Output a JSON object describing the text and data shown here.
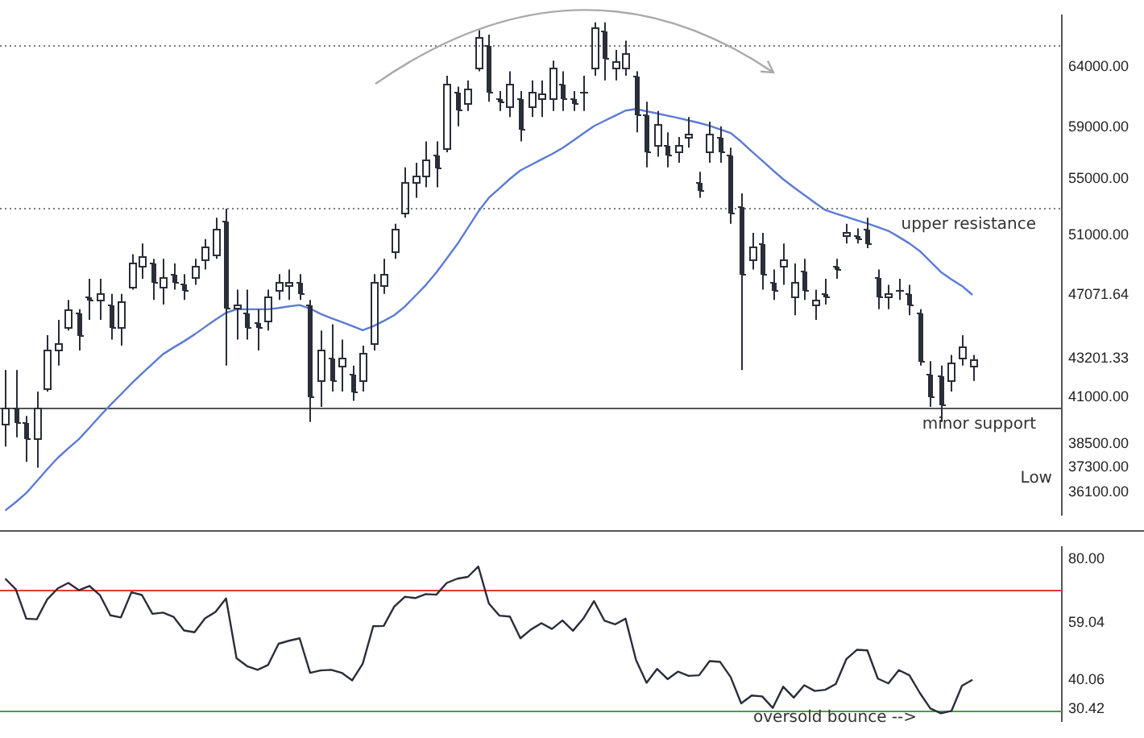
{
  "chart_data": [
    {
      "type": "candlestick",
      "log": true,
      "color": "#2a2e39",
      "categories": [
        null,
        null,
        null,
        null,
        null,
        null,
        null,
        null,
        null,
        null,
        null,
        null,
        null,
        null,
        null,
        null,
        null,
        null,
        null,
        null,
        null,
        null,
        null,
        null,
        null,
        null,
        null,
        null,
        null,
        null,
        null,
        null,
        null,
        null,
        null,
        null,
        null,
        null,
        null,
        null,
        null,
        null,
        null,
        null,
        null,
        null,
        null,
        null,
        null,
        null,
        null,
        null,
        null,
        null,
        null,
        null,
        null,
        null,
        null,
        null,
        null,
        null,
        null,
        null,
        null,
        null,
        null,
        null,
        null,
        null,
        null,
        null,
        null,
        null,
        null,
        null,
        null,
        null,
        null,
        null,
        null,
        null,
        null,
        null,
        null,
        null,
        null,
        null,
        null,
        null,
        null,
        null,
        null,
        null,
        null,
        null,
        null,
        null,
        null,
        null,
        null
      ],
      "ohlc": [
        [
          39580,
          42540,
          38380,
          40400
        ],
        [
          40400,
          42540,
          38860,
          39670
        ],
        [
          39670,
          39990,
          37600,
          38780
        ],
        [
          38780,
          41330,
          37300,
          40480
        ],
        [
          41500,
          44590,
          41330,
          43680
        ],
        [
          43680,
          45510,
          42800,
          44130
        ],
        [
          45050,
          46750,
          44870,
          46170
        ],
        [
          45980,
          46170,
          43680,
          44590
        ],
        [
          46940,
          48110,
          45510,
          46750
        ],
        [
          46750,
          48110,
          45510,
          47130
        ],
        [
          46460,
          47130,
          44320,
          45050
        ],
        [
          45050,
          47130,
          43960,
          46650
        ],
        [
          47610,
          49720,
          47410,
          49110
        ],
        [
          48910,
          50440,
          48110,
          49620
        ],
        [
          49110,
          49410,
          46750,
          47910
        ],
        [
          47610,
          49410,
          46460,
          48210
        ],
        [
          48410,
          49110,
          47410,
          47910
        ],
        [
          47810,
          48410,
          46750,
          47410
        ],
        [
          48210,
          49410,
          47710,
          48910
        ],
        [
          49410,
          50750,
          48710,
          50230
        ],
        [
          49720,
          52230,
          49410,
          51480
        ],
        [
          52010,
          52870,
          42800,
          46270
        ],
        [
          46270,
          47410,
          44320,
          46460
        ],
        [
          45980,
          47410,
          44320,
          45050
        ],
        [
          45330,
          46170,
          43680,
          45050
        ],
        [
          45510,
          47410,
          44870,
          46940
        ],
        [
          47410,
          48410,
          46750,
          47910
        ],
        [
          47710,
          48710,
          46750,
          47910
        ],
        [
          47910,
          48410,
          46750,
          47130
        ],
        [
          46460,
          46750,
          39670,
          41070
        ],
        [
          41930,
          44870,
          40480,
          43680
        ],
        [
          43240,
          45240,
          41330,
          41930
        ],
        [
          42800,
          44320,
          41330,
          43240
        ],
        [
          42360,
          42800,
          40820,
          41330
        ],
        [
          41930,
          43960,
          41330,
          43500
        ],
        [
          44130,
          48410,
          43680,
          47910
        ],
        [
          47710,
          49410,
          47130,
          48410
        ],
        [
          49920,
          51800,
          49410,
          51480
        ],
        [
          52550,
          55890,
          52230,
          54750
        ],
        [
          54750,
          56240,
          53640,
          55320
        ],
        [
          55320,
          57880,
          54410,
          56470
        ],
        [
          56810,
          57880,
          54410,
          55890
        ],
        [
          57400,
          63220,
          57040,
          62570
        ],
        [
          61930,
          62310,
          59070,
          60420
        ],
        [
          60920,
          62830,
          60300,
          62180
        ],
        [
          63870,
          67230,
          63610,
          66550
        ],
        [
          65870,
          66820,
          61050,
          61930
        ],
        [
          61300,
          61930,
          60300,
          61050
        ],
        [
          60670,
          63610,
          59810,
          62570
        ],
        [
          61300,
          61930,
          57880,
          58830
        ],
        [
          60670,
          62830,
          59810,
          61930
        ],
        [
          61300,
          62830,
          59810,
          61680
        ],
        [
          61300,
          64530,
          60300,
          63870
        ],
        [
          62570,
          63610,
          60300,
          61300
        ],
        [
          61300,
          61930,
          60300,
          60920
        ],
        [
          61930,
          63220,
          60300,
          61930
        ],
        [
          63870,
          67930,
          63220,
          67510
        ],
        [
          67230,
          67930,
          62830,
          64790
        ],
        [
          63870,
          65460,
          62830,
          64530
        ],
        [
          63870,
          66290,
          63220,
          65190
        ],
        [
          63220,
          63610,
          58590,
          60050
        ],
        [
          60050,
          61050,
          55890,
          57040
        ],
        [
          57640,
          60300,
          56700,
          59190
        ],
        [
          57640,
          58590,
          55890,
          56810
        ],
        [
          57040,
          58230,
          56240,
          57640
        ],
        [
          58230,
          59810,
          57400,
          58470
        ],
        [
          54750,
          55550,
          53640,
          54190
        ],
        [
          57040,
          59440,
          56240,
          58470
        ],
        [
          58230,
          59070,
          56240,
          57040
        ],
        [
          56810,
          57400,
          51800,
          52550
        ],
        [
          53090,
          53970,
          42540,
          48410
        ],
        [
          49410,
          51170,
          48710,
          50230
        ],
        [
          50440,
          51170,
          47410,
          48410
        ],
        [
          47910,
          48710,
          46750,
          47410
        ],
        [
          48910,
          50440,
          47710,
          49410
        ],
        [
          46940,
          49110,
          45800,
          47910
        ],
        [
          48610,
          49410,
          46750,
          47410
        ],
        [
          46460,
          47410,
          45510,
          46750
        ],
        [
          47220,
          48110,
          46460,
          46940
        ],
        [
          48910,
          49410,
          48110,
          48710
        ],
        [
          50960,
          51800,
          50440,
          51270
        ],
        [
          50960,
          51480,
          50440,
          50750
        ],
        [
          51480,
          52230,
          50130,
          50440
        ],
        [
          48210,
          48710,
          46170,
          46940
        ],
        [
          46940,
          47710,
          46170,
          47220
        ],
        [
          47410,
          48110,
          46750,
          47410
        ],
        [
          47220,
          47710,
          45800,
          46460
        ],
        [
          45980,
          46170,
          42800,
          43060
        ],
        [
          42360,
          43060,
          40480,
          41070
        ],
        [
          42190,
          42800,
          39670,
          40650
        ],
        [
          41930,
          43420,
          41330,
          42980
        ],
        [
          43240,
          44590,
          42800,
          43870
        ],
        [
          42800,
          43420,
          41930,
          43201.33
        ],
        null,
        null,
        null,
        null,
        null,
        null,
        null,
        null
      ],
      "series": [
        {
          "type": "line",
          "color": "#5b7bd5",
          "values": [
            35210,
            35610,
            36050,
            36630,
            37230,
            37800,
            38290,
            38760,
            39360,
            39980,
            40590,
            41170,
            41770,
            42340,
            42900,
            43460,
            43850,
            44220,
            44630,
            45080,
            45530,
            45950,
            46170,
            46170,
            46170,
            46170,
            46250,
            46350,
            46430,
            46210,
            45880,
            45620,
            45390,
            45140,
            44890,
            45130,
            45450,
            45800,
            46330,
            47010,
            47700,
            48510,
            49440,
            50400,
            51510,
            52660,
            53650,
            54330,
            55030,
            55660,
            56070,
            56490,
            56900,
            57360,
            57920,
            58510,
            59080,
            59500,
            59910,
            60330,
            60460,
            60270,
            60100,
            59910,
            59730,
            59530,
            59340,
            59110,
            58820,
            58530,
            57860,
            57110,
            56400,
            55680,
            55000,
            54410,
            53850,
            53300,
            52770,
            52520,
            52290,
            52050,
            51820,
            51570,
            51310,
            50890,
            50450,
            49930,
            49230,
            48540,
            48070,
            47640,
            47071.64,
            null,
            null,
            null,
            null,
            null,
            null,
            null,
            null
          ]
        }
      ],
      "ylim": [
        35000,
        68600
      ],
      "yticks": [
        {
          "value": 64000,
          "label": "64000.00"
        },
        {
          "value": 59000,
          "label": "59000.00"
        },
        {
          "value": 55000,
          "label": "55000.00"
        },
        {
          "value": 51000,
          "label": "51000.00"
        },
        47071.64,
        43201.33,
        {
          "value": 41000,
          "label": "41000.00"
        },
        {
          "value": 38500,
          "label": "38500.00"
        },
        {
          "value": 37300,
          "label": "37300.00"
        },
        {
          "value": 36100,
          "label": "36100.00"
        }
      ],
      "ref_lines": [
        {
          "axis": "y",
          "value": 65870,
          "label": null,
          "color": "#787b86",
          "line_style": "dotted"
        },
        {
          "axis": "y",
          "value": 52870,
          "label": "upper resistance",
          "color": "#787b86",
          "line_style": "dotted"
        },
        {
          "axis": "y",
          "value": 40400,
          "label": "minor support",
          "color": "#555555",
          "line_style": "solid"
        }
      ],
      "annotations": [
        "Low"
      ]
    },
    {
      "type": "line",
      "color": "#2a2e39",
      "categories": [
        null,
        null,
        null,
        null,
        null,
        null,
        null,
        null,
        null,
        null,
        null,
        null,
        null,
        null,
        null,
        null,
        null,
        null,
        null,
        null,
        null,
        null,
        null,
        null,
        null,
        null,
        null,
        null,
        null,
        null,
        null,
        null,
        null,
        null,
        null,
        null,
        null,
        null,
        null,
        null,
        null,
        null,
        null,
        null,
        null,
        null,
        null,
        null,
        null,
        null,
        null,
        null,
        null,
        null,
        null,
        null,
        null,
        null,
        null,
        null,
        null,
        null,
        null,
        null,
        null,
        null,
        null,
        null,
        null,
        null,
        null,
        null,
        null,
        null,
        null,
        null,
        null,
        null,
        null,
        null,
        null,
        null,
        null,
        null,
        null,
        null,
        null,
        null,
        null,
        null,
        null,
        null,
        null,
        null,
        null,
        null,
        null,
        null,
        null,
        null,
        null
      ],
      "values": [
        73.5,
        70.0,
        60.3,
        60.1,
        66.7,
        70.3,
        72.1,
        69.7,
        71.1,
        68.1,
        61.4,
        60.7,
        69.0,
        68.1,
        61.9,
        62.3,
        60.9,
        56.4,
        55.8,
        60.4,
        62.5,
        67.0,
        47.2,
        44.6,
        43.4,
        45.0,
        52.0,
        53.0,
        53.8,
        42.4,
        43.2,
        43.4,
        42.4,
        39.9,
        45.4,
        57.8,
        57.9,
        64.3,
        67.5,
        67.1,
        68.4,
        68.2,
        72.1,
        73.5,
        74.1,
        77.5,
        65.3,
        61.3,
        61.0,
        53.8,
        56.7,
        58.8,
        56.9,
        59.7,
        56.3,
        60.4,
        66.1,
        59.6,
        58.4,
        60.3,
        46.6,
        39.1,
        43.7,
        40.3,
        42.8,
        41.4,
        41.6,
        46.3,
        46.0,
        41.0,
        32.3,
        34.9,
        34.6,
        30.8,
        37.8,
        34.2,
        38.3,
        36.4,
        36.8,
        38.7,
        46.9,
        50.0,
        49.8,
        40.5,
        38.9,
        43.3,
        41.6,
        35.7,
        30.6,
        29.0,
        29.8,
        38.1,
        40.1,
        null,
        null,
        null,
        null,
        null,
        null,
        null,
        null
      ],
      "ylim": [
        26.4,
        84
      ],
      "yticks": [
        {
          "value": 80,
          "label": "80.00"
        },
        59.04,
        40.06,
        30.42
      ],
      "ref_lines": [
        {
          "axis": "y",
          "value": 70,
          "label": null,
          "color": "#e53935",
          "line_style": "solid"
        },
        {
          "axis": "y",
          "value": 30,
          "label": null,
          "color": "#43a047",
          "line_style": "solid"
        }
      ],
      "annotations": [
        {
          "text": "oversold bounce -->",
          "y": 27.6
        }
      ]
    }
  ]
}
